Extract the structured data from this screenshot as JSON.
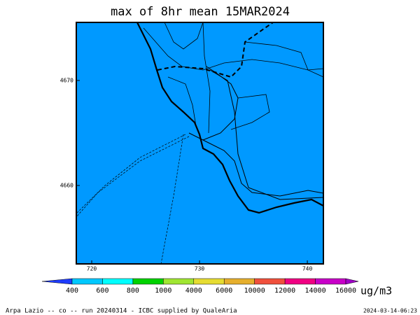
{
  "title": "max of 8hr mean 15MAR2024",
  "map": {
    "xlim": [
      718.57,
      741.49
    ],
    "ylim": [
      4652.53,
      4675.53
    ],
    "xticks": [
      720,
      730,
      740
    ],
    "yticks": [
      4660,
      4670
    ],
    "fill": "#0099ff"
  },
  "colorbar": {
    "labels": [
      "400",
      "600",
      "800",
      "1000",
      "4000",
      "6000",
      "10000",
      "12000",
      "14000",
      "16000"
    ],
    "colors": [
      "#1e3cff",
      "#00c8ff",
      "#00ffff",
      "#00d200",
      "#a0e632",
      "#e6dc32",
      "#e6af2d",
      "#f0503c",
      "#f00082",
      "#c800c8",
      "#a000c8"
    ],
    "unit": "ug/m3"
  },
  "footer": {
    "left": "Arpa Lazio -- co -- run 20240314 - ICBC supplied by QualeAria",
    "right": "2024-03-14-06:23"
  }
}
